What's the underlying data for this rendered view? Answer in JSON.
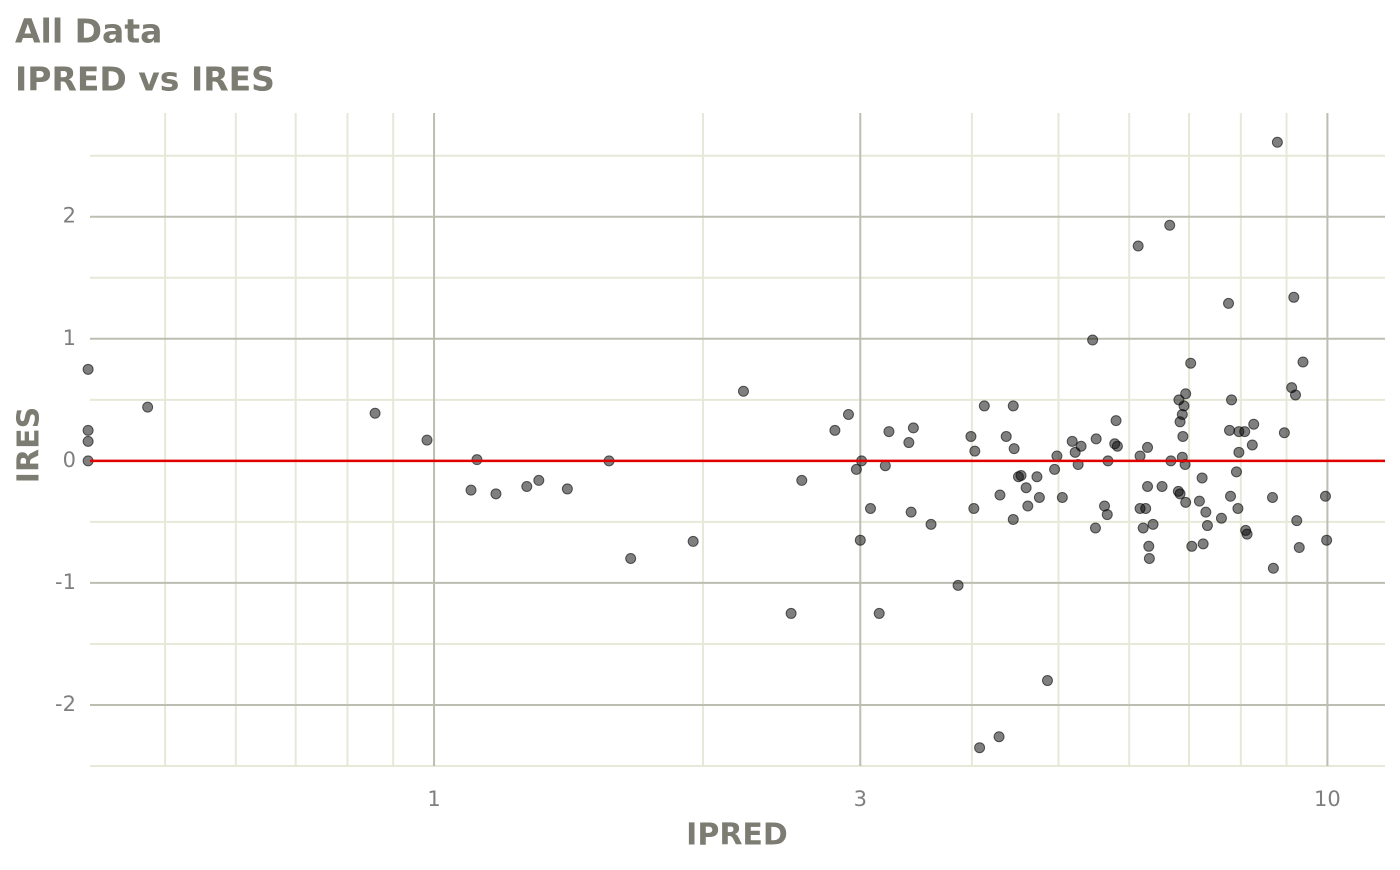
{
  "chart_data": {
    "type": "scatter",
    "title": "All Data",
    "subtitle": "IPRED vs IRES",
    "x_label": "IPRED",
    "y_label": "IRES",
    "x": [
      0.41,
      0.41,
      0.41,
      0.41,
      0.478,
      0.859,
      0.982,
      1.1,
      1.117,
      1.173,
      1.27,
      1.31,
      1.41,
      1.57,
      1.66,
      1.95,
      2.22,
      2.51,
      2.58,
      2.81,
      2.91,
      2.97,
      3.0,
      3.01,
      3.08,
      3.15,
      3.2,
      3.23,
      3.4,
      3.42,
      3.44,
      3.6,
      3.86,
      3.99,
      4.02,
      4.03,
      4.08,
      4.13,
      4.29,
      4.3,
      4.37,
      4.45,
      4.45,
      4.46,
      4.51,
      4.54,
      4.6,
      4.62,
      4.73,
      4.76,
      4.86,
      4.95,
      4.98,
      5.05,
      5.18,
      5.22,
      5.26,
      5.3,
      5.46,
      5.5,
      5.51,
      5.63,
      5.67,
      5.68,
      5.78,
      5.8,
      5.82,
      6.14,
      6.17,
      6.17,
      6.22,
      6.26,
      6.29,
      6.29,
      6.31,
      6.32,
      6.38,
      6.53,
      6.66,
      6.68,
      6.81,
      6.82,
      6.84,
      6.84,
      6.88,
      6.88,
      6.89,
      6.91,
      6.93,
      6.94,
      6.94,
      7.03,
      7.05,
      7.19,
      7.24,
      7.26,
      7.31,
      7.34,
      7.61,
      7.75,
      7.77,
      7.79,
      7.81,
      7.91,
      7.94,
      7.96,
      7.96,
      8.08,
      8.1,
      8.13,
      8.24,
      8.27,
      8.68,
      8.7,
      8.79,
      8.95,
      9.12,
      9.17,
      9.21,
      9.24,
      9.3,
      9.39,
      9.95,
      9.98
    ],
    "values": [
      0.75,
      0.25,
      0.16,
      0,
      0.44,
      0.39,
      0.17,
      -0.24,
      0.01,
      -0.27,
      -0.21,
      -0.16,
      -0.23,
      0,
      -0.8,
      -0.66,
      0.57,
      -1.25,
      -0.16,
      0.25,
      0.38,
      -0.07,
      -0.65,
      0,
      -0.39,
      -1.25,
      -0.04,
      0.24,
      0.15,
      -0.42,
      0.27,
      -0.52,
      -1.02,
      0.2,
      -0.39,
      0.08,
      -2.35,
      0.45,
      -2.26,
      -0.28,
      0.2,
      -0.48,
      0.45,
      0.1,
      -0.13,
      -0.12,
      -0.22,
      -0.37,
      -0.13,
      -0.3,
      -1.8,
      -0.07,
      0.04,
      -0.3,
      0.16,
      0.07,
      -0.03,
      0.12,
      0.99,
      -0.55,
      0.18,
      -0.37,
      -0.44,
      0,
      0.14,
      0.33,
      0.12,
      1.76,
      0.04,
      -0.39,
      -0.55,
      -0.39,
      -0.21,
      0.11,
      -0.7,
      -0.8,
      -0.52,
      -0.21,
      1.93,
      0,
      -0.25,
      0.5,
      -0.27,
      0.32,
      0.03,
      0.38,
      0.2,
      0.45,
      -0.03,
      0.55,
      -0.34,
      0.8,
      -0.7,
      -0.33,
      -0.14,
      -0.68,
      -0.42,
      -0.53,
      -0.47,
      1.29,
      0.25,
      -0.29,
      0.5,
      -0.09,
      -0.39,
      0.24,
      0.07,
      0.24,
      -0.57,
      -0.6,
      0.13,
      0.3,
      -0.3,
      -0.88,
      2.61,
      0.23,
      0.6,
      1.34,
      0.54,
      -0.49,
      -0.71,
      0.81,
      -0.29,
      -0.65
    ],
    "color": "#000000",
    "xlim": [
      0.412,
      11.6
    ],
    "ylim": [
      -2.5,
      2.85
    ],
    "x_log": true,
    "xticks": [
      1,
      3,
      10
    ],
    "yticks": [
      -2,
      -1,
      0,
      1,
      2
    ],
    "xminor": [
      0.5,
      0.6,
      0.7,
      0.8,
      0.9,
      2,
      4,
      5,
      6,
      7,
      8,
      9
    ],
    "yminor": [
      -2.5,
      -1.5,
      -0.5,
      0.5,
      1.5,
      2.5
    ],
    "grid": true,
    "reference_line": {
      "y": 0,
      "color": "#e00000"
    }
  }
}
